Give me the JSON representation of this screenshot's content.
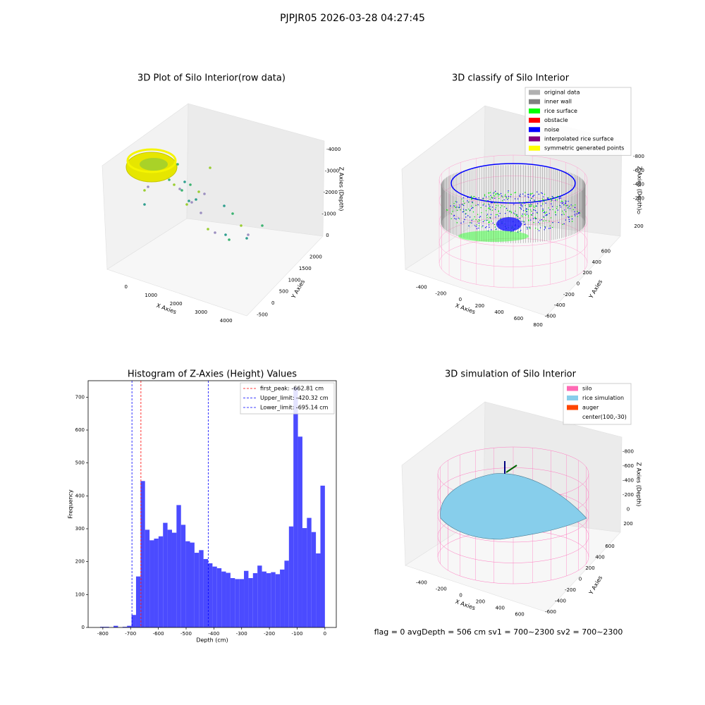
{
  "title": "PJPJR05 2026-03-28 04:27:45",
  "footer": "flag = 0     avgDepth = 506 cm  sv1 = 700~2300  sv2 = 700~2300",
  "chart_data": [
    {
      "type": "scatter3d",
      "title": "3D Plot of Silo Interior(row data)",
      "xlabel": "X Axies",
      "ylabel": "Y Axies",
      "zlabel": "Z Axies (Depth)",
      "xlim": [
        -500,
        4600
      ],
      "ylim": [
        -700,
        2200
      ],
      "zlim": [
        -4400,
        200
      ],
      "xticks": [
        0,
        1000,
        2000,
        3000,
        4000
      ],
      "yticks": [
        -500,
        0,
        500,
        1000,
        1500,
        2000
      ],
      "zticks": [
        -4000,
        -3000,
        -2000,
        -1000,
        0
      ]
    },
    {
      "type": "scatter3d",
      "title": "3D classify of Silo Interior",
      "xlabel": "X Axies",
      "ylabel": "Y Axies",
      "zlabel": "Z Axies (Depth)",
      "xlim": [
        -500,
        850
      ],
      "ylim": [
        -700,
        700
      ],
      "zlim": [
        -900,
        300
      ],
      "xticks": [
        -400,
        -200,
        0,
        200,
        400,
        600,
        800
      ],
      "yticks": [
        -600,
        -400,
        -200,
        0,
        200,
        400,
        600
      ],
      "zticks": [
        -800,
        -600,
        -400,
        -200,
        0,
        200
      ],
      "series": [
        {
          "name": "original data",
          "color": "#b0b0b0"
        },
        {
          "name": "inner wall",
          "color": "#808080"
        },
        {
          "name": "rice surface",
          "color": "#00ff00"
        },
        {
          "name": "obstacle",
          "color": "#ff0000"
        },
        {
          "name": "noise",
          "color": "#0000ff"
        },
        {
          "name": "interpolated rice surface",
          "color": "#800080"
        },
        {
          "name": "symmetric generated points",
          "color": "#ffff00"
        }
      ]
    },
    {
      "type": "histogram",
      "title": "Histogram of Z-Axies (Height) Values",
      "xlabel": "Depth (cm)",
      "ylabel": "Frequency",
      "color": "#4b4bff",
      "bins": [
        -810,
        -793.8,
        -777.6,
        -761.4,
        -745.2,
        -729,
        -712.8,
        -696.6,
        -680.4,
        -664.2,
        -648,
        -631.8,
        -615.6,
        -599.4,
        -583.2,
        -567,
        -550.8,
        -534.6,
        -518.4,
        -502.2,
        -486,
        -469.8,
        -453.6,
        -437.4,
        -421.2,
        -405,
        -388.8,
        -372.6,
        -356.4,
        -340.2,
        -324,
        -307.8,
        -291.6,
        -275.4,
        -259.2,
        -243,
        -226.8,
        -210.6,
        -194.4,
        -178.2,
        -162,
        -145.8,
        -129.6,
        -113.4,
        -97.2,
        -81,
        -64.8,
        -48.6,
        -32.4,
        -16.2,
        0
      ],
      "values": [
        2,
        2,
        0,
        5,
        0,
        2,
        5,
        38,
        155,
        445,
        297,
        265,
        270,
        277,
        318,
        297,
        288,
        372,
        312,
        262,
        258,
        227,
        235,
        208,
        195,
        185,
        180,
        170,
        166,
        150,
        147,
        147,
        172,
        150,
        165,
        188,
        170,
        165,
        168,
        162,
        176,
        203,
        307,
        730,
        580,
        302,
        333,
        290,
        225,
        431
      ],
      "xlim": [
        -853,
        41
      ],
      "ylim": [
        0,
        750
      ],
      "xticks": [
        -800,
        -700,
        -600,
        -500,
        -400,
        -300,
        -200,
        -100,
        0
      ],
      "yticks": [
        0,
        100,
        200,
        300,
        400,
        500,
        600,
        700
      ],
      "lines": [
        {
          "name": "first_peak: -662.81 cm",
          "value": -662.81,
          "color": "#ff0000"
        },
        {
          "name": "Upper_limit: -420.32 cm",
          "value": -420.32,
          "color": "#0000ff"
        },
        {
          "name": "Lower_limit: -695.14 cm",
          "value": -695.14,
          "color": "#0000ff"
        }
      ]
    },
    {
      "type": "surface3d",
      "title": "3D simulation of Silo Interior",
      "xlabel": "X Axies",
      "ylabel": "Y Axies",
      "zlabel": "Z Axies (Depth)",
      "xlim": [
        -500,
        700
      ],
      "ylim": [
        -700,
        700
      ],
      "zlim": [
        -900,
        300
      ],
      "xticks": [
        -400,
        -200,
        0,
        200,
        400,
        600
      ],
      "yticks": [
        -600,
        -400,
        -200,
        0,
        200,
        400,
        600
      ],
      "zticks": [
        -800,
        -600,
        -400,
        -200,
        0,
        200
      ],
      "series": [
        {
          "name": "silo",
          "color": "#ff69b4"
        },
        {
          "name": "rice simulation",
          "color": "#87ceeb"
        },
        {
          "name": "auger",
          "color": "#ff4500"
        },
        {
          "name": "center(100,-30)",
          "color": "#ffffff"
        }
      ]
    }
  ]
}
